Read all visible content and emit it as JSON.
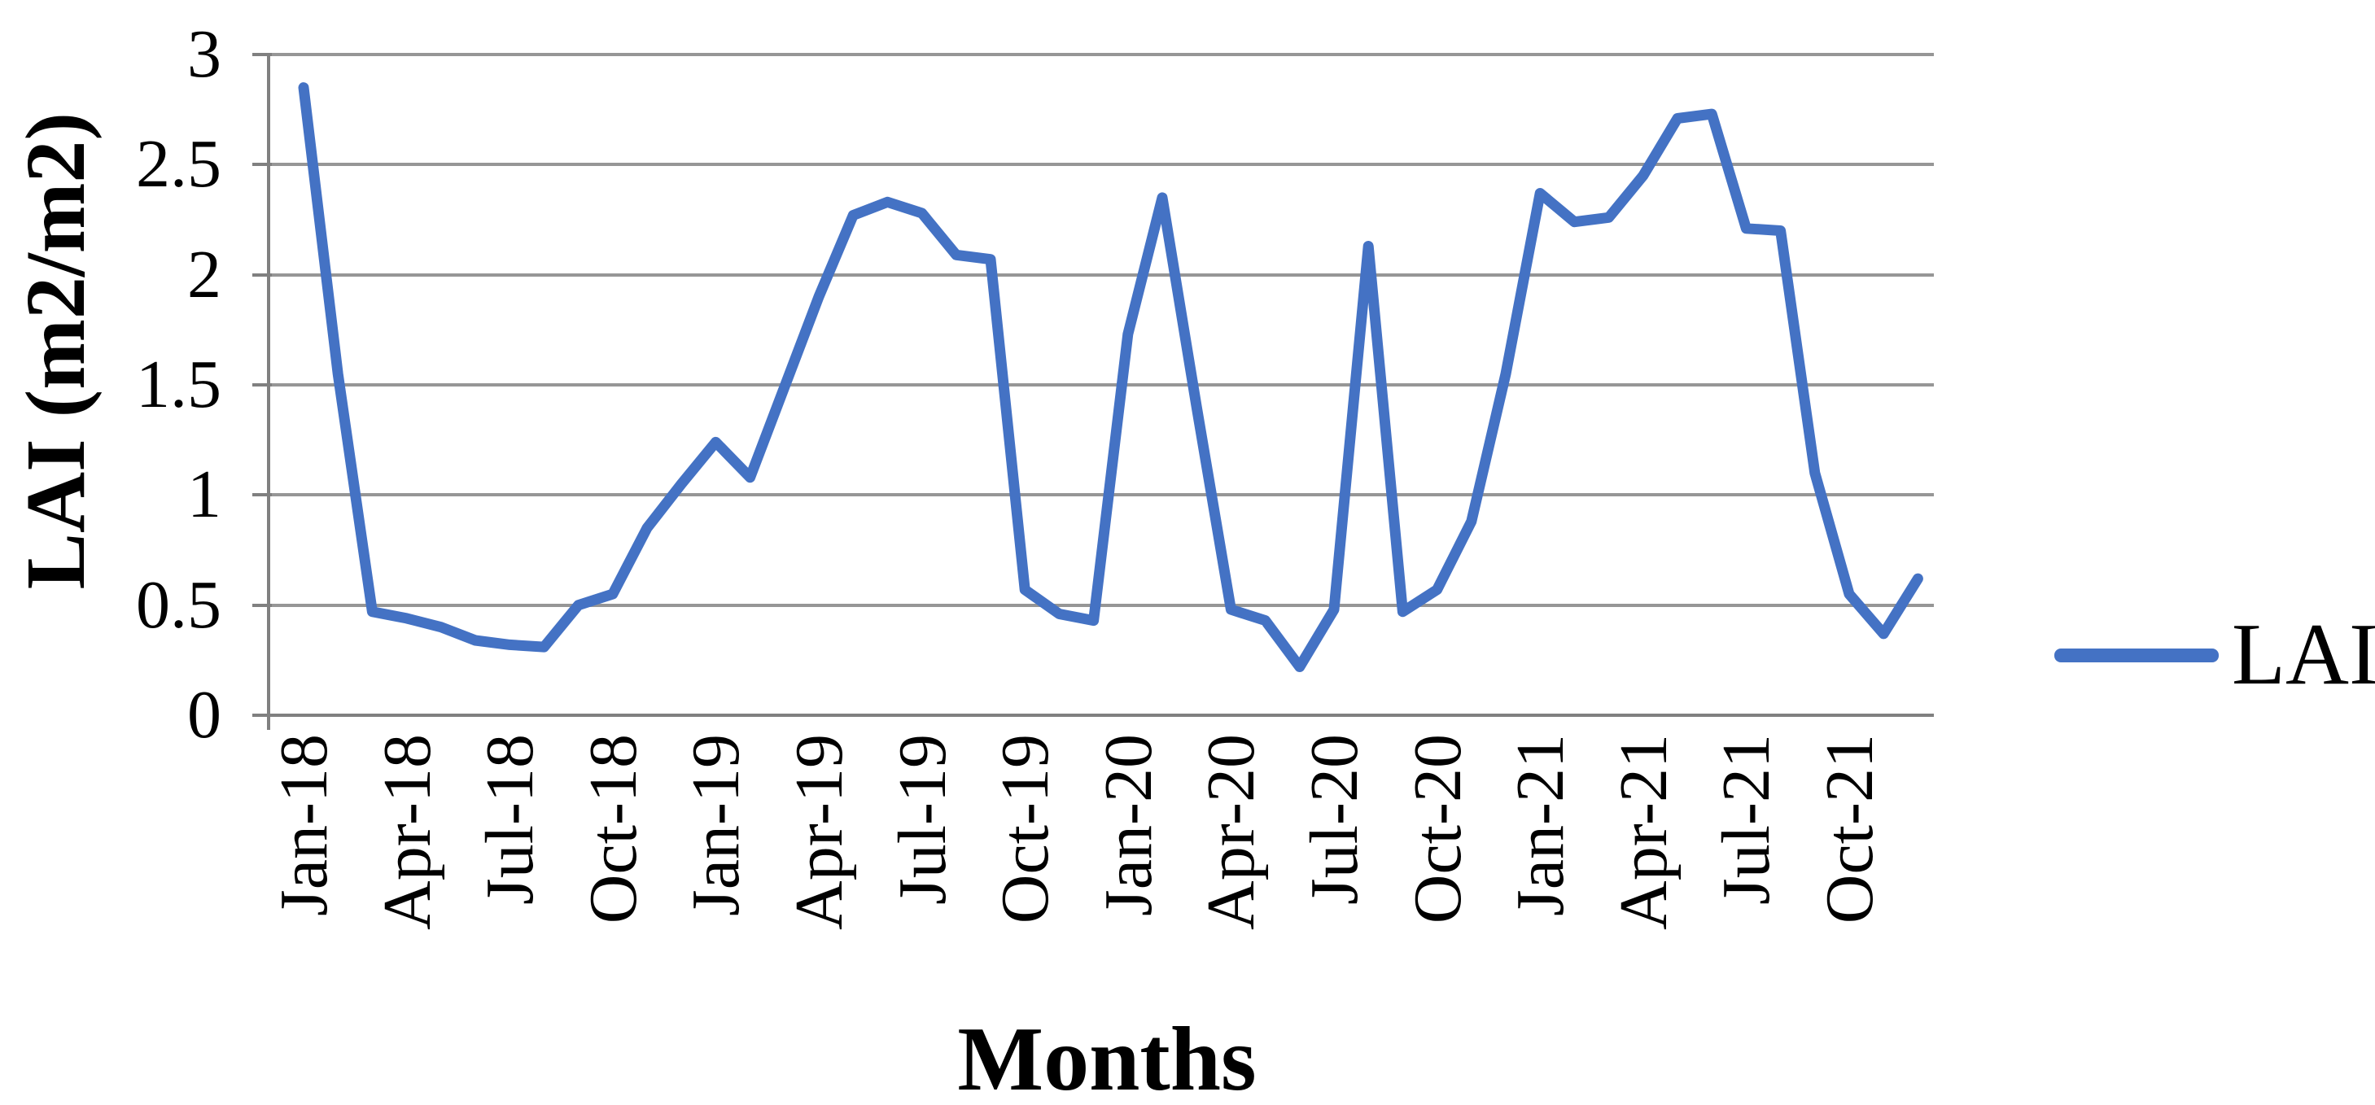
{
  "chart_data": {
    "type": "line",
    "title": "",
    "xlabel": "Months",
    "ylabel": "LAI (m2/m2)",
    "ylim": [
      0,
      3
    ],
    "ytick_step": 0.5,
    "yticks": [
      "0",
      "0.5",
      "1",
      "1.5",
      "2",
      "2.5",
      "3"
    ],
    "xtick_interval": 3,
    "xtick_labels_shown": [
      "Jan-18",
      "Apr-18",
      "Jul-18",
      "Oct-18",
      "Jan-19",
      "Apr-19",
      "Jul-19",
      "Oct-19",
      "Jan-20",
      "Apr-20",
      "Jul-20",
      "Oct-20",
      "Jan-21",
      "Apr-21",
      "Jul-21",
      "Oct-21"
    ],
    "grid": "horizontal",
    "legend_position": "right",
    "x": [
      "Jan-18",
      "Feb-18",
      "Mar-18",
      "Apr-18",
      "May-18",
      "Jun-18",
      "Jul-18",
      "Aug-18",
      "Sep-18",
      "Oct-18",
      "Nov-18",
      "Dec-18",
      "Jan-19",
      "Feb-19",
      "Mar-19",
      "Apr-19",
      "May-19",
      "Jun-19",
      "Jul-19",
      "Aug-19",
      "Sep-19",
      "Oct-19",
      "Nov-19",
      "Dec-19",
      "Jan-20",
      "Feb-20",
      "Mar-20",
      "Apr-20",
      "May-20",
      "Jun-20",
      "Jul-20",
      "Aug-20",
      "Sep-20",
      "Oct-20",
      "Nov-20",
      "Dec-20",
      "Jan-21",
      "Feb-21",
      "Mar-21",
      "Apr-21",
      "May-21",
      "Jun-21",
      "Jul-21",
      "Aug-21",
      "Sep-21",
      "Oct-21",
      "Nov-21",
      "Dec-21"
    ],
    "series": [
      {
        "name": "LAI",
        "values": [
          2.85,
          1.55,
          0.47,
          0.44,
          0.4,
          0.34,
          0.32,
          0.31,
          0.5,
          0.55,
          0.85,
          1.05,
          1.24,
          1.08,
          1.49,
          1.9,
          2.27,
          2.33,
          2.28,
          2.09,
          2.07,
          0.57,
          0.46,
          0.43,
          1.73,
          2.35,
          1.4,
          0.48,
          0.43,
          0.22,
          0.48,
          2.13,
          0.47,
          0.57,
          0.88,
          1.55,
          2.37,
          2.24,
          2.26,
          2.45,
          2.71,
          2.73,
          2.21,
          2.2,
          1.1,
          0.55,
          0.37,
          0.62
        ]
      }
    ]
  },
  "legend": {
    "label": "LAI"
  },
  "colors": {
    "line": "#4472C4",
    "gridline": "#969696",
    "axis": "#808080",
    "text": "#000000",
    "background": "#FFFFFF"
  }
}
